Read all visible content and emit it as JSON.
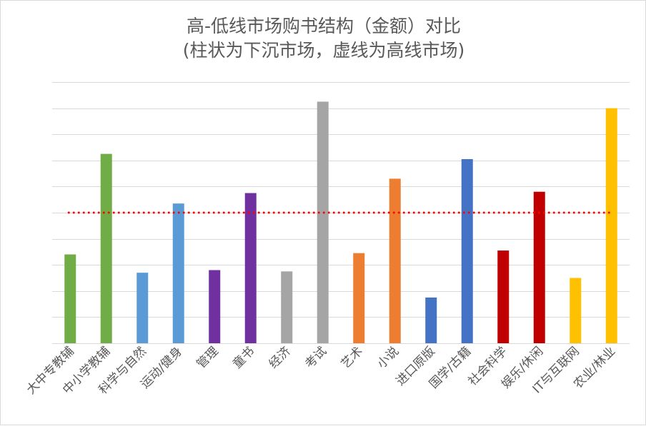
{
  "chart_data": {
    "type": "bar",
    "title": "高-低线市场购书结构（金额）对比",
    "subtitle": "(柱状为下沉市场，虚线为高线市场)",
    "categories": [
      "大中专教辅",
      "中小学教辅",
      "科学与自然",
      "运动/健身",
      "管理",
      "童书",
      "经济",
      "考试",
      "艺术",
      "小说",
      "进口原版",
      "国学/古籍",
      "社会科学",
      "娱乐/休闲",
      "IT与互联网",
      "农业/林业"
    ],
    "values": [
      3.4,
      7.25,
      2.7,
      5.35,
      2.8,
      5.75,
      2.75,
      9.25,
      3.45,
      6.3,
      1.75,
      7.05,
      3.55,
      5.8,
      2.5,
      9.0
    ],
    "colors": [
      "#70ad47",
      "#70ad47",
      "#5b9bd5",
      "#5b9bd5",
      "#7030a0",
      "#7030a0",
      "#a5a5a5",
      "#a5a5a5",
      "#ed7d31",
      "#ed7d31",
      "#4472c4",
      "#4472c4",
      "#c00000",
      "#c00000",
      "#ffc000",
      "#ffc000"
    ],
    "reference_line": {
      "value": 5.0,
      "style": "dotted",
      "color": "#ff0000"
    },
    "ylim": [
      0,
      10
    ],
    "grid": true,
    "y_ticks_shown": false,
    "legend": "none",
    "gridline_color": "#d9d9d9"
  }
}
